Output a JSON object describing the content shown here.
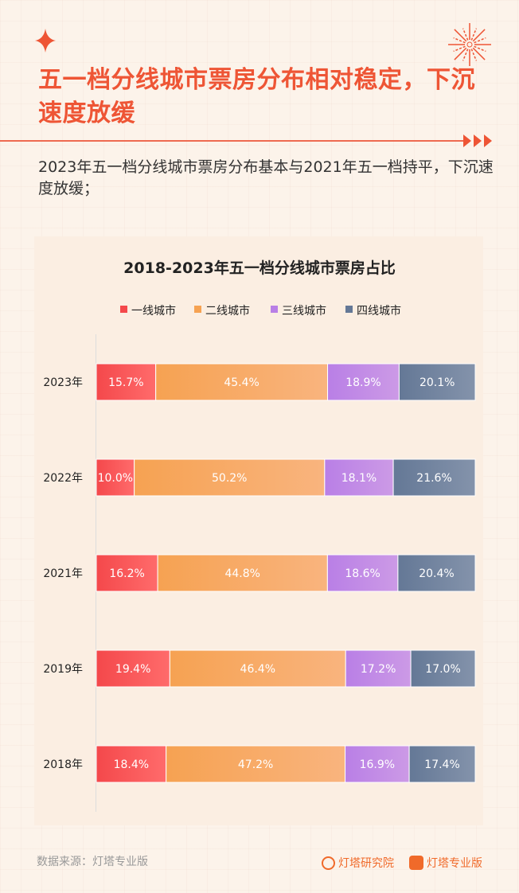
{
  "header": {
    "title": "五一档分线城市票房分布相对稳定，下沉速度放缓",
    "subtitle": "2023年五一档分线城市票房分布基本与2021年五一档持平，下沉速度放缓；"
  },
  "colors": {
    "accent": "#ee5535",
    "tier1": "#f4484b",
    "tier2": "#f6a252",
    "tier3": "#b97fe6",
    "tier4": "#647896"
  },
  "chart_data": {
    "type": "bar",
    "orientation": "horizontal",
    "stacked": true,
    "title": "2018-2023年五一档分线城市票房占比",
    "categories": [
      "2023年",
      "2022年",
      "2021年",
      "2019年",
      "2018年"
    ],
    "series": [
      {
        "name": "一线城市",
        "values": [
          15.7,
          10.0,
          16.2,
          19.4,
          18.4
        ],
        "color": "#f4484b"
      },
      {
        "name": "二线城市",
        "values": [
          45.4,
          50.2,
          44.8,
          46.4,
          47.2
        ],
        "color": "#f6a252"
      },
      {
        "name": "三线城市",
        "values": [
          18.9,
          18.1,
          18.6,
          17.2,
          16.9
        ],
        "color": "#b97fe6"
      },
      {
        "name": "四线城市",
        "values": [
          20.1,
          21.6,
          20.4,
          17.0,
          17.4
        ],
        "color": "#647896"
      }
    ],
    "unit": "%",
    "legend": "top",
    "grid": false
  },
  "footer": {
    "source": "数据来源：灯塔专业版",
    "logo1": "灯塔研究院",
    "logo2": "灯塔专业版"
  }
}
